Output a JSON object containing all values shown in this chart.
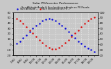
{
  "title_line1": "Solar PV/Inverter Performance",
  "title_line2": "Sun Altitude Angle & Sun Incidence Angle on PV Panels",
  "background_color": "#c8c8c8",
  "grid_color": "#e8e8e8",
  "x_times": [
    7.0,
    7.5,
    8.0,
    8.5,
    9.0,
    9.5,
    10.0,
    10.5,
    11.0,
    11.5,
    12.0,
    12.5,
    13.0,
    13.5,
    14.0,
    14.5,
    15.0,
    15.5,
    16.0,
    16.5,
    17.0,
    17.5,
    18.0,
    18.5,
    19.0
  ],
  "sun_altitude": [
    2,
    6,
    12,
    18,
    24,
    30,
    35,
    40,
    44,
    47,
    48,
    47,
    44,
    40,
    35,
    30,
    24,
    18,
    12,
    6,
    2,
    -3,
    -7,
    -10,
    -13
  ],
  "sun_incidence": [
    88,
    84,
    79,
    73,
    67,
    61,
    55,
    49,
    43,
    38,
    34,
    32,
    32,
    34,
    38,
    43,
    49,
    55,
    61,
    67,
    73,
    79,
    84,
    88,
    91
  ],
  "altitude_color": "#0000dd",
  "incidence_color": "#dd0000",
  "ylim_left": [
    -20,
    60
  ],
  "ylim_right": [
    20,
    100
  ],
  "xlim": [
    6.5,
    19.5
  ],
  "legend_altitude": "Sun Altitude --",
  "legend_incidence": "Sun Incidence on PV --",
  "marker_size": 1.5,
  "xtick_positions": [
    7,
    8,
    9,
    10,
    11,
    12,
    13,
    14,
    15,
    16,
    17,
    18,
    19
  ],
  "ytick_left": [
    -20,
    -10,
    0,
    10,
    20,
    30,
    40,
    50,
    60
  ],
  "ytick_right": [
    20,
    30,
    40,
    50,
    60,
    70,
    80,
    90,
    100
  ]
}
